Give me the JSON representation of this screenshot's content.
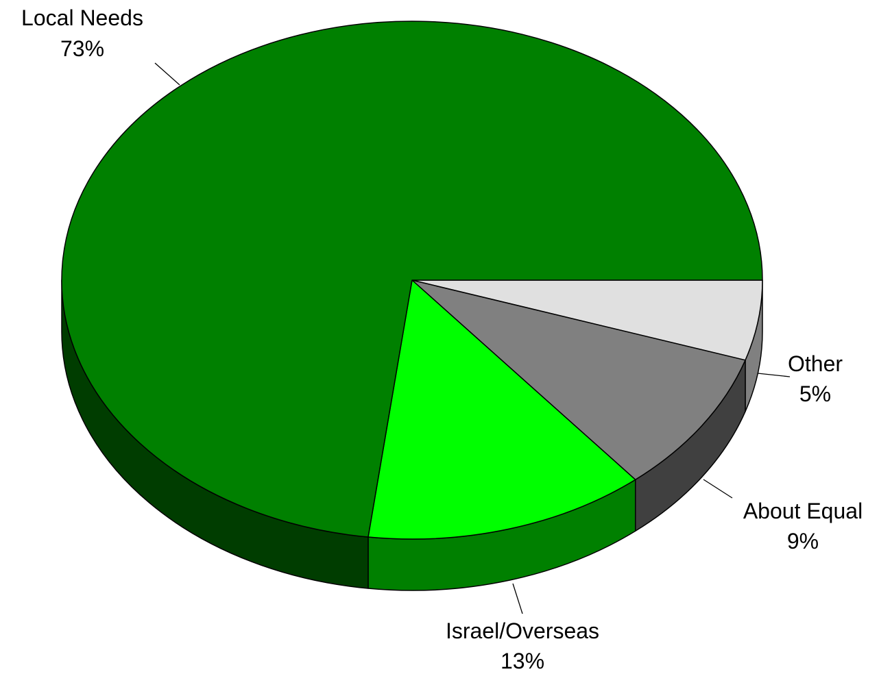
{
  "chart_data": {
    "type": "pie",
    "style": "3d",
    "title": "",
    "slices": [
      {
        "label": "Local Needs",
        "value": 73,
        "value_label": "73%",
        "color": "#008000",
        "side_color": "#003d00"
      },
      {
        "label": "Israel/Overseas",
        "value": 13,
        "value_label": "13%",
        "color": "#00ff00",
        "side_color": "#008000"
      },
      {
        "label": "About Equal",
        "value": 9,
        "value_label": "9%",
        "color": "#808080",
        "side_color": "#404040"
      },
      {
        "label": "Other",
        "value": 5,
        "value_label": "5%",
        "color": "#e0e0e0",
        "side_color": "#808080"
      }
    ]
  }
}
